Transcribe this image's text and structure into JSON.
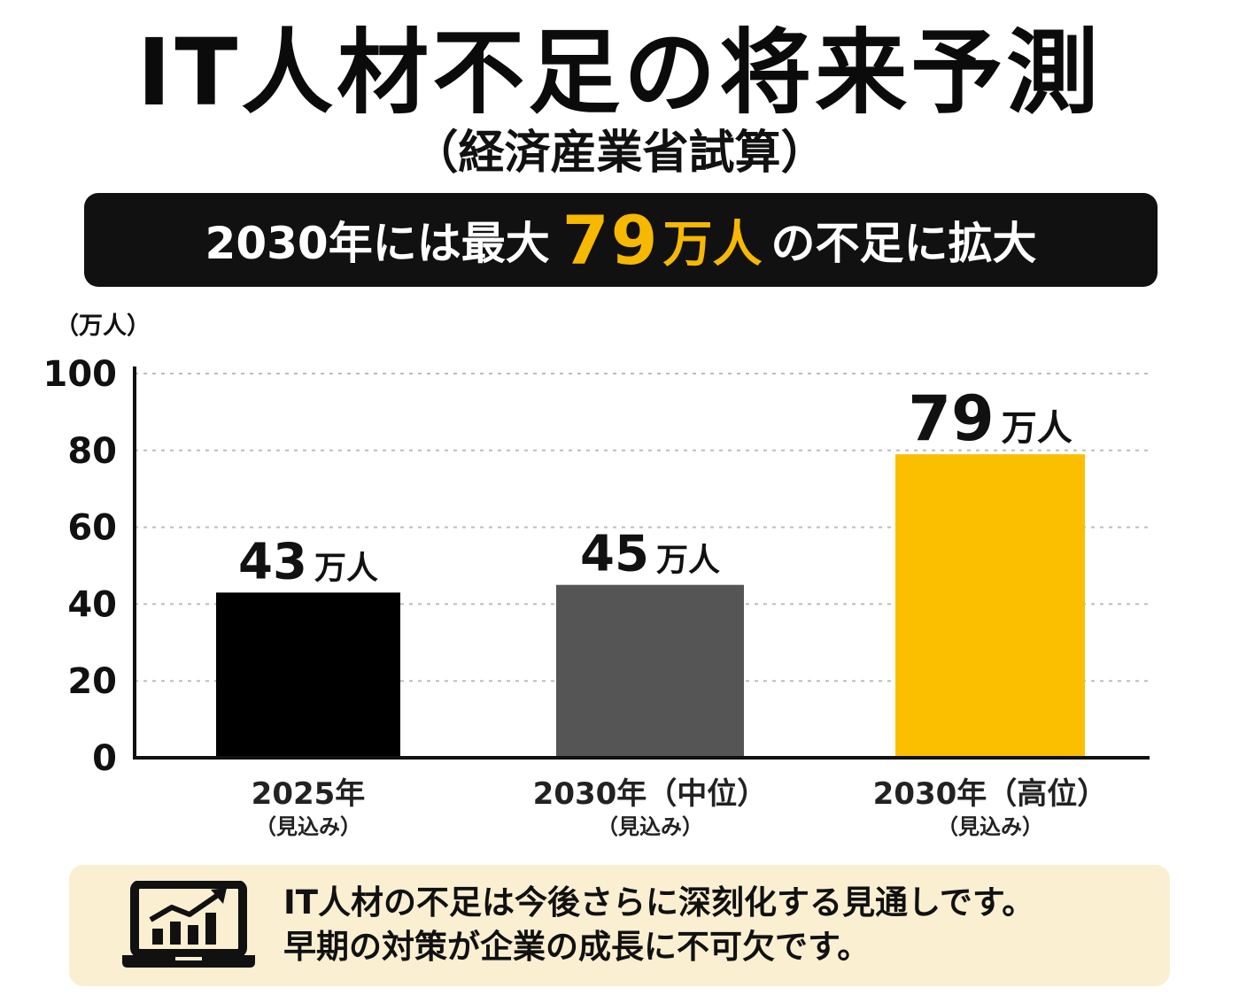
{
  "title": "IT人材不足の将来予測",
  "subtitle": "（経済産業省試算）",
  "banner": {
    "prefix": "2030年には最大",
    "number": "79",
    "unit": "万人",
    "suffix": "の不足に拡大",
    "highlight_color": "#f6b800"
  },
  "chart_data": {
    "type": "bar",
    "unit_label": "（万人）",
    "categories": [
      "2025年",
      "2030年（中位）",
      "2030年（高位）"
    ],
    "category_sublabels": [
      "（見込み）",
      "（見込み）",
      "（見込み）"
    ],
    "values": [
      43,
      45,
      79
    ],
    "value_labels": [
      {
        "number": "43",
        "unit": "万人"
      },
      {
        "number": "45",
        "unit": "万人"
      },
      {
        "number": "79",
        "unit": "万人"
      }
    ],
    "bar_colors": [
      "#000000",
      "#555555",
      "#fbbf00"
    ],
    "ylim": [
      0,
      100
    ],
    "yticks": [
      0,
      20,
      40,
      60,
      80,
      100
    ],
    "grid": true
  },
  "note": {
    "line1": "IT人材の不足は今後さらに深刻化する見通しです。",
    "line2": "早期の対策が企業の成長に不可欠です。",
    "icon": "laptop-growth-chart-icon",
    "background_color": "#fbefd2"
  }
}
